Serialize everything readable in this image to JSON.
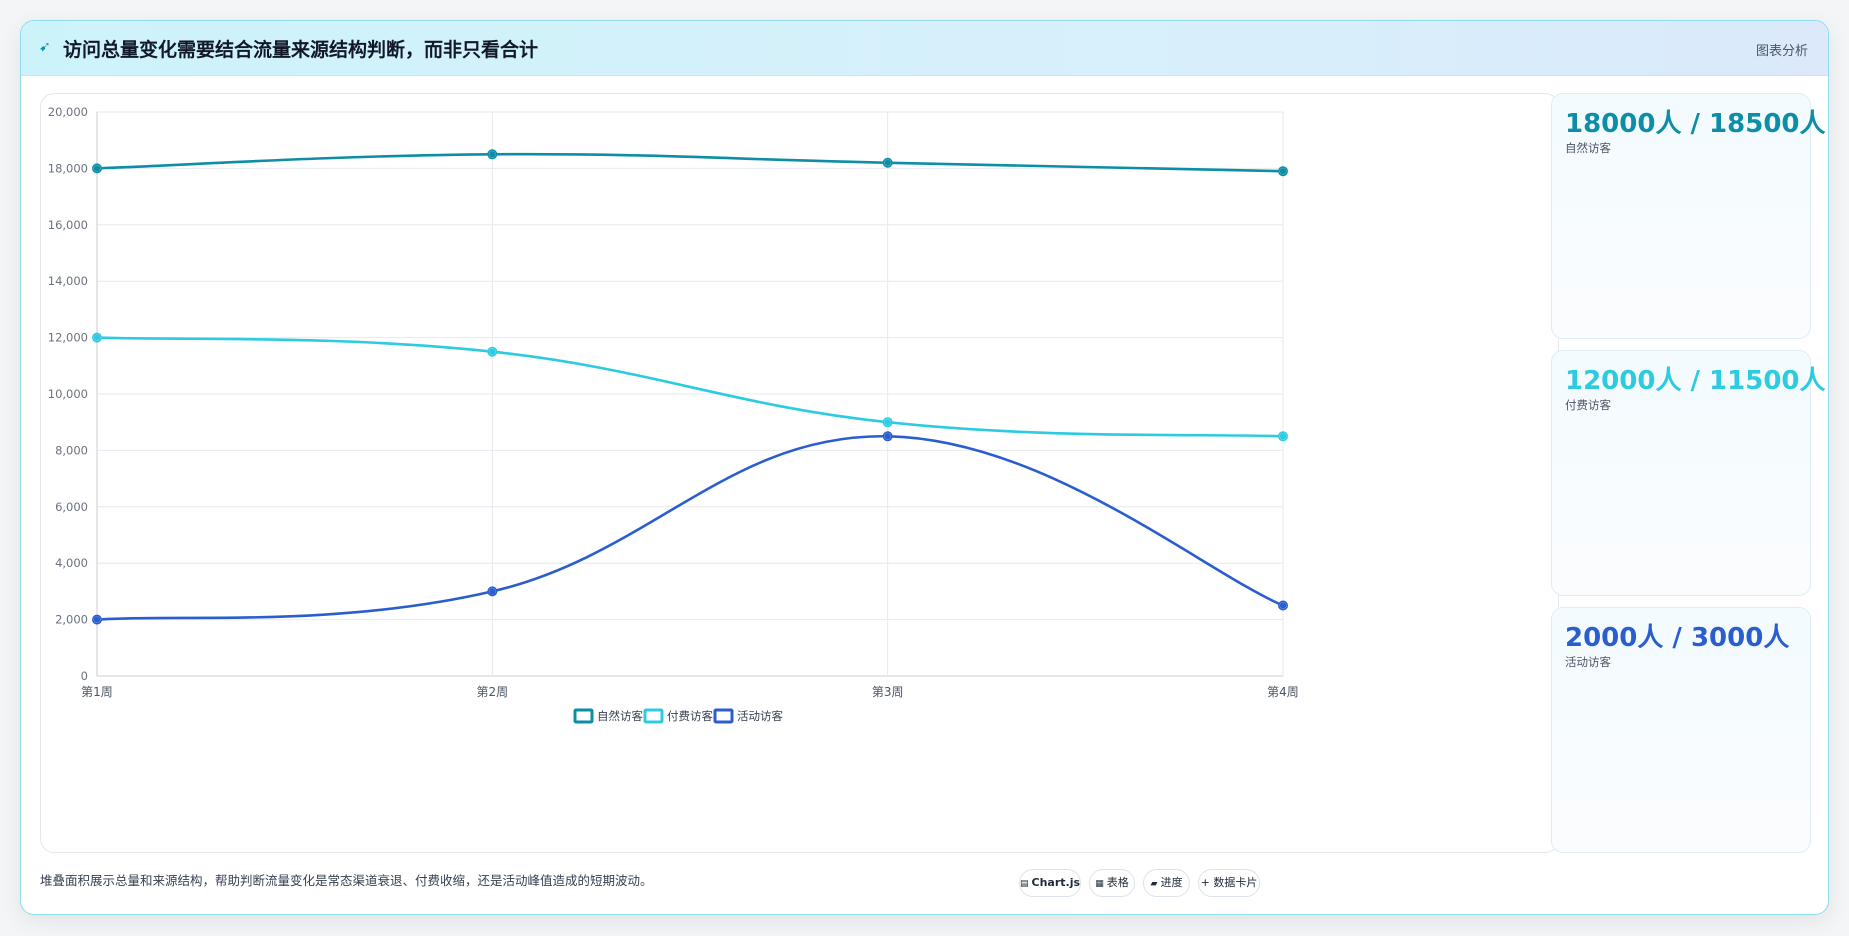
{
  "header": {
    "icon": "sparkle-icon",
    "title": "访问总量变化需要结合流量来源结构判断，而非只看合计",
    "link_label": "图表分析"
  },
  "chart_data": {
    "type": "line",
    "categories": [
      "第1周",
      "第2周",
      "第3周",
      "第4周"
    ],
    "ylim": [
      0,
      20000
    ],
    "yticks": [
      0,
      2000,
      4000,
      6000,
      8000,
      10000,
      12000,
      14000,
      16000,
      18000,
      20000
    ],
    "ytick_labels": [
      "0",
      "2,000",
      "4,000",
      "6,000",
      "8,000",
      "10,000",
      "12,000",
      "14,000",
      "16,000",
      "18,000",
      "20,000"
    ],
    "grid": true,
    "legend_position": "bottom",
    "series": [
      {
        "name": "自然访客",
        "values": [
          18000,
          18500,
          18200,
          17900
        ],
        "color": "#0e8ea6"
      },
      {
        "name": "付费访客",
        "values": [
          12000,
          11500,
          9000,
          8500
        ],
        "color": "#2ccbe0"
      },
      {
        "name": "活动访客",
        "values": [
          2000,
          3000,
          8500,
          2500
        ],
        "color": "#2a5ecf"
      }
    ]
  },
  "cards": [
    {
      "value": "18000人 / 18500人",
      "label": "自然访客",
      "color": "#0e8ea6"
    },
    {
      "value": "12000人 / 11500人",
      "label": "付费访客",
      "color": "#2ccbe0"
    },
    {
      "value": "2000人 / 3000人",
      "label": "活动访客",
      "color": "#2a5ecf"
    }
  ],
  "footer": {
    "note": "堆叠面积展示总量和来源结构，帮助判断流量变化是常态渠道衰退、付费收缩，还是活动峰值造成的短期波动。",
    "chips": [
      {
        "icon": "chart-icon",
        "label": "Chart.js"
      },
      {
        "icon": "table-icon",
        "label": "表格"
      },
      {
        "icon": "progress-icon",
        "label": "进度"
      },
      {
        "icon": "plus-icon",
        "label": "+ 数据卡片"
      }
    ]
  }
}
